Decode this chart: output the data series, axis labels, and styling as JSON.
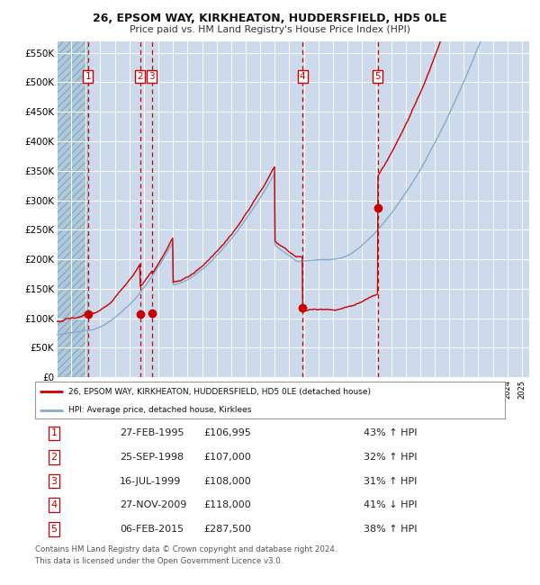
{
  "title1": "26, EPSOM WAY, KIRKHEATON, HUDDERSFIELD, HD5 0LE",
  "title2": "Price paid vs. HM Land Registry's House Price Index (HPI)",
  "bg_color": "#ccdaeb",
  "grid_color": "#ffffff",
  "red_line_color": "#cc0000",
  "blue_line_color": "#88aacc",
  "vline_color": "#cc0000",
  "ylim": [
    0,
    570000
  ],
  "yticks": [
    0,
    50000,
    100000,
    150000,
    200000,
    250000,
    300000,
    350000,
    400000,
    450000,
    500000,
    550000
  ],
  "ytick_labels": [
    "£0",
    "£50K",
    "£100K",
    "£150K",
    "£200K",
    "£250K",
    "£300K",
    "£350K",
    "£400K",
    "£450K",
    "£500K",
    "£550K"
  ],
  "xmin": 1993,
  "xmax": 2025.5,
  "sales": [
    {
      "label": "1",
      "date_x": 1995.15,
      "price": 106995
    },
    {
      "label": "2",
      "date_x": 1998.73,
      "price": 107000
    },
    {
      "label": "3",
      "date_x": 1999.54,
      "price": 108000
    },
    {
      "label": "4",
      "date_x": 2009.91,
      "price": 118000
    },
    {
      "label": "5",
      "date_x": 2015.09,
      "price": 287500
    }
  ],
  "table_data": [
    [
      "1",
      "27-FEB-1995",
      "£106,995",
      "43% ↑ HPI"
    ],
    [
      "2",
      "25-SEP-1998",
      "£107,000",
      "32% ↑ HPI"
    ],
    [
      "3",
      "16-JUL-1999",
      "£108,000",
      "31% ↑ HPI"
    ],
    [
      "4",
      "27-NOV-2009",
      "£118,000",
      "41% ↓ HPI"
    ],
    [
      "5",
      "06-FEB-2015",
      "£287,500",
      "38% ↑ HPI"
    ]
  ],
  "legend_line1": "26, EPSOM WAY, KIRKHEATON, HUDDERSFIELD, HD5 0LE (detached house)",
  "legend_line2": "HPI: Average price, detached house, Kirklees",
  "footer1": "Contains HM Land Registry data © Crown copyright and database right 2024.",
  "footer2": "This data is licensed under the Open Government Licence v3.0."
}
